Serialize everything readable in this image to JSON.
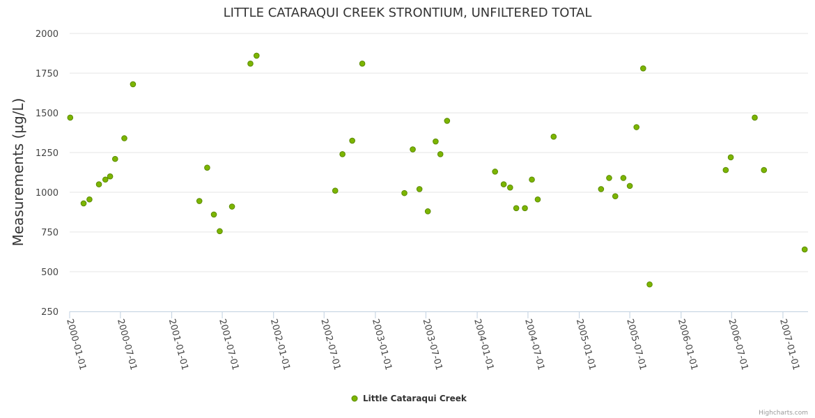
{
  "chart_data": {
    "type": "scatter",
    "title": "LITTLE CATARAQUI CREEK STRONTIUM, UNFILTERED TOTAL",
    "ylabel": "Measurements (µg/L)",
    "xlabel": "",
    "ylim": [
      250,
      2000
    ],
    "yticks": [
      250,
      500,
      750,
      1000,
      1250,
      1500,
      1750,
      2000
    ],
    "xlim": [
      "2000-01-01",
      "2007-04-01"
    ],
    "xticks": [
      "2000-01-01",
      "2000-07-01",
      "2001-01-01",
      "2001-07-01",
      "2002-01-01",
      "2002-07-01",
      "2003-01-01",
      "2003-07-01",
      "2004-01-01",
      "2004-07-01",
      "2005-01-01",
      "2005-07-01",
      "2006-01-01",
      "2006-07-01",
      "2007-01-01"
    ],
    "grid": true,
    "legend": "bottom-center",
    "series": [
      {
        "name": "Little Cataraqui Creek",
        "color": "#7cb500",
        "points": [
          {
            "x": "2000-01-03",
            "y": 1470
          },
          {
            "x": "2000-02-20",
            "y": 930
          },
          {
            "x": "2000-03-12",
            "y": 955
          },
          {
            "x": "2000-04-15",
            "y": 1050
          },
          {
            "x": "2000-05-08",
            "y": 1080
          },
          {
            "x": "2000-05-25",
            "y": 1100
          },
          {
            "x": "2000-06-12",
            "y": 1210
          },
          {
            "x": "2000-07-15",
            "y": 1340
          },
          {
            "x": "2000-08-15",
            "y": 1680
          },
          {
            "x": "2001-04-10",
            "y": 945
          },
          {
            "x": "2001-05-08",
            "y": 1155
          },
          {
            "x": "2001-06-01",
            "y": 860
          },
          {
            "x": "2001-06-22",
            "y": 755
          },
          {
            "x": "2001-08-05",
            "y": 910
          },
          {
            "x": "2001-10-10",
            "y": 1810
          },
          {
            "x": "2001-11-01",
            "y": 1860
          },
          {
            "x": "2002-08-10",
            "y": 1010
          },
          {
            "x": "2002-09-05",
            "y": 1240
          },
          {
            "x": "2002-10-10",
            "y": 1325
          },
          {
            "x": "2002-11-15",
            "y": 1810
          },
          {
            "x": "2003-04-15",
            "y": 995
          },
          {
            "x": "2003-05-15",
            "y": 1270
          },
          {
            "x": "2003-06-08",
            "y": 1020
          },
          {
            "x": "2003-07-08",
            "y": 880
          },
          {
            "x": "2003-08-05",
            "y": 1320
          },
          {
            "x": "2003-08-22",
            "y": 1240
          },
          {
            "x": "2003-09-15",
            "y": 1450
          },
          {
            "x": "2004-03-05",
            "y": 1130
          },
          {
            "x": "2004-04-05",
            "y": 1050
          },
          {
            "x": "2004-04-28",
            "y": 1030
          },
          {
            "x": "2004-05-20",
            "y": 900
          },
          {
            "x": "2004-06-20",
            "y": 900
          },
          {
            "x": "2004-07-15",
            "y": 1080
          },
          {
            "x": "2004-08-05",
            "y": 955
          },
          {
            "x": "2004-10-01",
            "y": 1350
          },
          {
            "x": "2005-03-20",
            "y": 1020
          },
          {
            "x": "2005-04-18",
            "y": 1090
          },
          {
            "x": "2005-05-10",
            "y": 975
          },
          {
            "x": "2005-06-08",
            "y": 1090
          },
          {
            "x": "2005-07-01",
            "y": 1040
          },
          {
            "x": "2005-07-25",
            "y": 1410
          },
          {
            "x": "2005-08-18",
            "y": 1780
          },
          {
            "x": "2005-09-10",
            "y": 420
          },
          {
            "x": "2006-06-10",
            "y": 1140
          },
          {
            "x": "2006-06-28",
            "y": 1220
          },
          {
            "x": "2006-09-22",
            "y": 1470
          },
          {
            "x": "2006-10-25",
            "y": 1140
          },
          {
            "x": "2007-03-20",
            "y": 640
          }
        ]
      }
    ]
  },
  "credits": "Highcharts.com"
}
